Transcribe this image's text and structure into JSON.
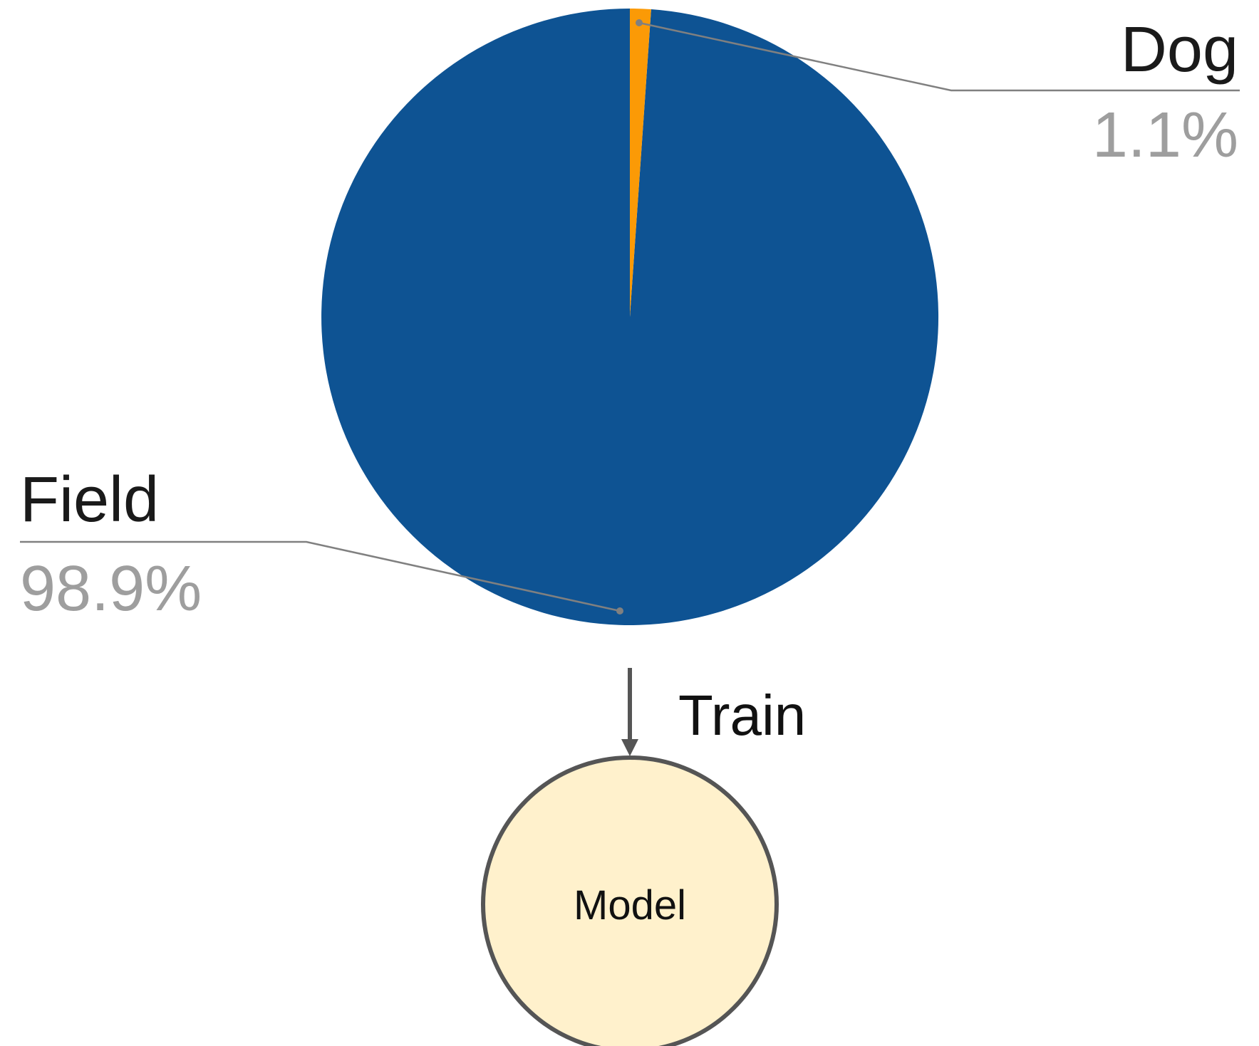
{
  "chart_data": {
    "type": "pie",
    "slices": [
      {
        "label": "Dog",
        "value": 1.1,
        "value_label": "1.1%",
        "color": "#fb9a06"
      },
      {
        "label": "Field",
        "value": 98.9,
        "value_label": "98.9%",
        "color": "#0e5393"
      }
    ],
    "label_line_color": "#808080"
  },
  "diagram": {
    "edge": {
      "label": "Train",
      "color": "#555555"
    },
    "node": {
      "label": "Model",
      "fill": "#fff1cc",
      "stroke": "#555555"
    }
  }
}
